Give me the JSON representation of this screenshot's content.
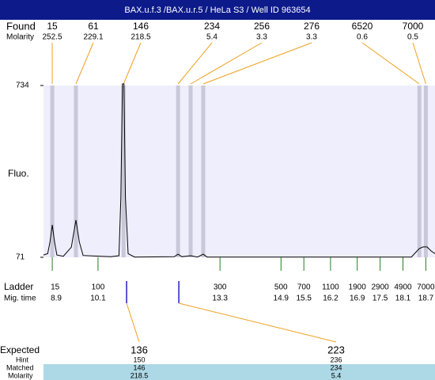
{
  "header": {
    "title": "BAX.u.f.3 /BAX.u.r.5 / HeLa S3 / Well ID 963654"
  },
  "chart_data": {
    "type": "line",
    "ylabel": "Fluo.",
    "ylim": [
      71,
      734
    ],
    "yticks": [
      71,
      734
    ],
    "xlim": [
      8.67,
      18.94
    ],
    "color": "#000000",
    "x": [
      8.67,
      8.78,
      8.84,
      8.9,
      8.96,
      9.02,
      9.19,
      9.4,
      9.52,
      9.61,
      9.71,
      10.44,
      10.65,
      10.7,
      10.74,
      10.78,
      10.82,
      10.89,
      11.06,
      12.1,
      12.2,
      12.3,
      12.53,
      12.71,
      12.86,
      12.96,
      18.32,
      18.53,
      18.63,
      18.73,
      18.84,
      18.94
    ],
    "values": [
      80,
      85,
      130,
      196,
      130,
      80,
      75,
      110,
      215,
      130,
      78,
      73,
      77,
      300,
      740,
      740,
      300,
      85,
      72,
      73,
      83,
      73,
      77,
      72,
      83,
      72,
      72,
      105,
      111,
      111,
      95,
      85
    ],
    "found": {
      "label": "Found",
      "molarity_label": "Molarity",
      "band_color": "#c8c8da",
      "link_color": "#f0a020",
      "sizes": [
        15,
        61,
        146,
        234,
        256,
        276,
        6520,
        7000
      ],
      "molarity": [
        252.5,
        229.1,
        218.5,
        5.4,
        3.3,
        3.3,
        0.6,
        0.5
      ],
      "times": [
        8.9,
        9.52,
        10.77,
        12.2,
        12.53,
        12.86,
        18.53,
        18.7
      ]
    },
    "ladder": {
      "label": "Ladder",
      "time_label": "Mig. time",
      "color": "#208020",
      "sizes": [
        15,
        100,
        300,
        500,
        700,
        1100,
        1900,
        2900,
        4900,
        7000
      ],
      "times": [
        8.9,
        10.1,
        13.3,
        14.9,
        15.5,
        16.2,
        16.9,
        17.5,
        18.1,
        18.7
      ]
    },
    "expected": {
      "label": "Expected",
      "hint_label": "Hint",
      "matched_label": "Matched",
      "molarity_label": "Molarity",
      "color": "#2020c0",
      "sizes": [
        136,
        223
      ],
      "hint": [
        150,
        236
      ],
      "matched": [
        146,
        234
      ],
      "molarity": [
        218.5,
        5.4
      ],
      "times": [
        10.85,
        12.22
      ]
    }
  }
}
